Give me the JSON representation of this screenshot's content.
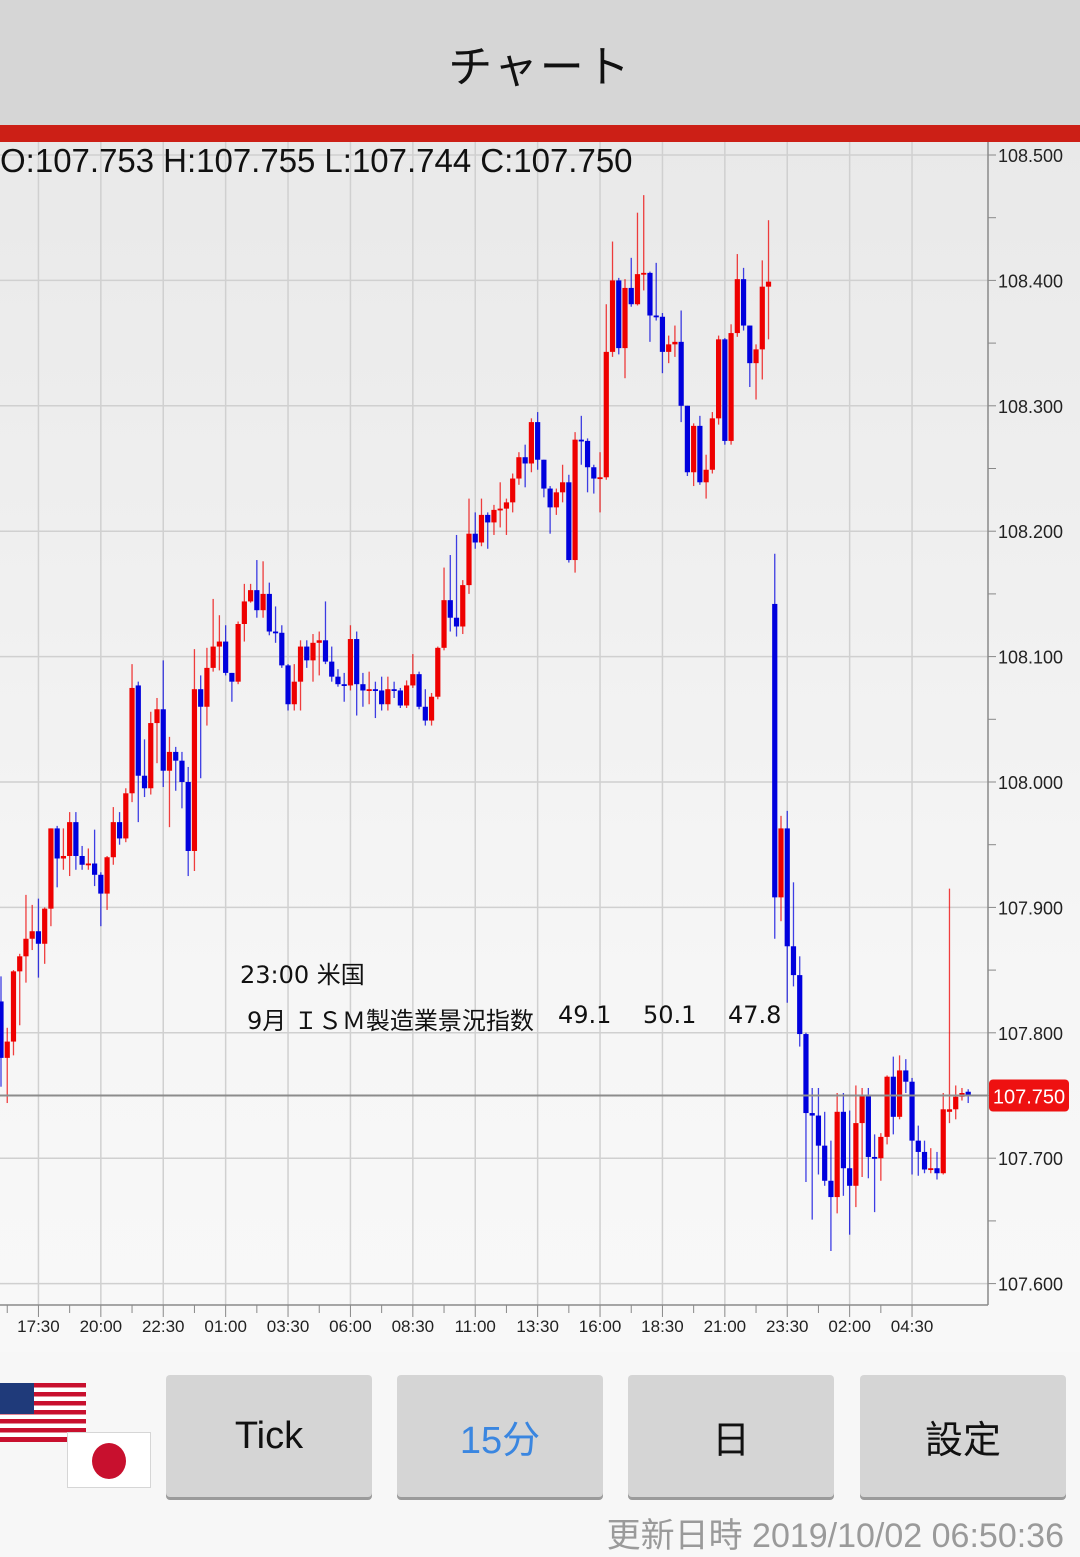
{
  "header": {
    "title": "チャート"
  },
  "ohlc": {
    "open": "O:107.753",
    "high": "H:107.755",
    "low": "L:107.744",
    "close": "C:107.750"
  },
  "event": {
    "time_country": "23:00 米国",
    "title": "9月 ＩＳＭ製造業景況指数",
    "values": [
      "49.1",
      "50.1",
      "47.8"
    ]
  },
  "colors": {
    "up": "#ee0000",
    "down": "#0000dd",
    "accent_bar": "#cc1f16",
    "price_badge": "#ee1111",
    "selected_button_text": "#3a86e0"
  },
  "toolbar": {
    "flags": [
      "us-flag-icon",
      "japan-flag-icon"
    ],
    "buttons": [
      {
        "label": "Tick",
        "selected": false
      },
      {
        "label": "15分",
        "selected": true
      },
      {
        "label": "日",
        "selected": false
      },
      {
        "label": "設定",
        "selected": false
      }
    ]
  },
  "updated": {
    "label": "更新日時",
    "value": "2019/10/02 06:50:36"
  },
  "chart_data": {
    "type": "candlestick",
    "interval": "15分",
    "ylim": [
      107.6,
      108.5
    ],
    "y_ticks": [
      "108.500",
      "108.400",
      "108.300",
      "108.200",
      "108.100",
      "108.000",
      "107.900",
      "107.800",
      "107.700",
      "107.600"
    ],
    "x_labels": [
      "17:30",
      "20:00",
      "22:30",
      "01:00",
      "03:30",
      "06:00",
      "08:30",
      "11:00",
      "13:30",
      "16:00",
      "18:30",
      "21:00",
      "23:30",
      "02:00",
      "04:30"
    ],
    "grid": true,
    "current_price": "107.750",
    "candles_ohlc": [
      [
        107.825,
        107.845,
        107.757,
        107.78
      ],
      [
        107.78,
        107.804,
        107.744,
        107.793
      ],
      [
        107.793,
        107.85,
        107.782,
        107.849
      ],
      [
        107.849,
        107.863,
        107.806,
        107.861
      ],
      [
        107.861,
        107.91,
        107.84,
        107.875
      ],
      [
        107.875,
        107.902,
        107.866,
        107.881
      ],
      [
        107.881,
        107.907,
        107.844,
        107.871
      ],
      [
        107.871,
        107.9,
        107.855,
        107.899
      ],
      [
        107.899,
        107.963,
        107.885,
        107.963
      ],
      [
        107.963,
        107.965,
        107.916,
        107.939
      ],
      [
        107.939,
        107.963,
        107.93,
        107.941
      ],
      [
        107.941,
        107.976,
        107.925,
        107.968
      ],
      [
        107.968,
        107.976,
        107.93,
        107.941
      ],
      [
        107.941,
        107.949,
        107.93,
        107.934
      ],
      [
        107.934,
        107.947,
        107.93,
        107.935
      ],
      [
        107.935,
        107.962,
        107.917,
        107.926
      ],
      [
        107.926,
        107.928,
        107.885,
        107.911
      ],
      [
        107.911,
        107.941,
        107.898,
        107.94
      ],
      [
        107.94,
        107.98,
        107.934,
        107.968
      ],
      [
        107.968,
        107.976,
        107.95,
        107.955
      ],
      [
        107.955,
        107.995,
        107.952,
        107.991
      ],
      [
        107.991,
        108.094,
        107.984,
        108.075
      ],
      [
        108.077,
        108.08,
        107.968,
        108.005
      ],
      [
        108.005,
        108.034,
        107.988,
        107.995
      ],
      [
        107.995,
        108.056,
        107.99,
        108.047
      ],
      [
        108.047,
        108.067,
        108.015,
        108.058
      ],
      [
        108.058,
        108.097,
        107.996,
        108.009
      ],
      [
        108.009,
        108.036,
        107.964,
        108.024
      ],
      [
        108.024,
        108.028,
        107.993,
        108.017
      ],
      [
        108.017,
        108.024,
        107.979,
        108.0
      ],
      [
        108.0,
        108.012,
        107.925,
        107.945
      ],
      [
        107.945,
        108.106,
        107.929,
        108.074
      ],
      [
        108.074,
        108.085,
        108.003,
        108.06
      ],
      [
        108.06,
        108.107,
        108.045,
        108.091
      ],
      [
        108.091,
        108.146,
        108.088,
        108.108
      ],
      [
        108.108,
        108.133,
        108.089,
        108.112
      ],
      [
        108.112,
        108.125,
        108.085,
        108.087
      ],
      [
        108.087,
        108.087,
        108.064,
        108.08
      ],
      [
        108.08,
        108.128,
        108.078,
        108.126
      ],
      [
        108.126,
        108.158,
        108.112,
        108.144
      ],
      [
        108.144,
        108.158,
        108.143,
        108.153
      ],
      [
        108.153,
        108.177,
        108.131,
        108.137
      ],
      [
        108.137,
        108.176,
        108.131,
        108.15
      ],
      [
        108.15,
        108.159,
        108.117,
        108.12
      ],
      [
        108.12,
        108.14,
        108.111,
        108.119
      ],
      [
        108.119,
        108.125,
        108.091,
        108.093
      ],
      [
        108.093,
        108.094,
        108.057,
        108.062
      ],
      [
        108.062,
        108.094,
        108.057,
        108.08
      ],
      [
        108.08,
        108.113,
        108.057,
        108.108
      ],
      [
        108.108,
        108.113,
        108.091,
        108.097
      ],
      [
        108.097,
        108.118,
        108.08,
        108.111
      ],
      [
        108.111,
        108.12,
        108.085,
        108.113
      ],
      [
        108.113,
        108.144,
        108.094,
        108.096
      ],
      [
        108.096,
        108.108,
        108.08,
        108.084
      ],
      [
        108.084,
        108.09,
        108.076,
        108.078
      ],
      [
        108.078,
        108.087,
        108.064,
        108.077
      ],
      [
        108.077,
        108.125,
        108.073,
        108.114
      ],
      [
        108.114,
        108.12,
        108.053,
        108.078
      ],
      [
        108.078,
        108.087,
        108.06,
        108.073
      ],
      [
        108.073,
        108.088,
        108.062,
        108.074
      ],
      [
        108.074,
        108.08,
        108.051,
        108.073
      ],
      [
        108.073,
        108.084,
        108.057,
        108.062
      ],
      [
        108.062,
        108.084,
        108.057,
        108.074
      ],
      [
        108.074,
        108.08,
        108.067,
        108.073
      ],
      [
        108.073,
        108.075,
        108.059,
        108.061
      ],
      [
        108.061,
        108.081,
        108.059,
        108.077
      ],
      [
        108.077,
        108.102,
        108.075,
        108.086
      ],
      [
        108.086,
        108.088,
        108.058,
        108.06
      ],
      [
        108.06,
        108.074,
        108.045,
        108.049
      ],
      [
        108.049,
        108.071,
        108.045,
        108.068
      ],
      [
        108.068,
        108.108,
        108.066,
        108.107
      ],
      [
        108.107,
        108.171,
        108.105,
        108.145
      ],
      [
        108.145,
        108.181,
        108.12,
        108.131
      ],
      [
        108.131,
        108.197,
        108.116,
        108.124
      ],
      [
        108.124,
        108.161,
        108.118,
        108.157
      ],
      [
        108.157,
        108.226,
        108.15,
        108.198
      ],
      [
        108.198,
        108.215,
        108.186,
        108.191
      ],
      [
        108.191,
        108.226,
        108.188,
        108.213
      ],
      [
        108.213,
        108.215,
        108.186,
        108.207
      ],
      [
        108.207,
        108.221,
        108.197,
        108.217
      ],
      [
        108.217,
        108.239,
        108.203,
        108.218
      ],
      [
        108.218,
        108.226,
        108.197,
        108.223
      ],
      [
        108.223,
        108.246,
        108.215,
        108.242
      ],
      [
        108.242,
        108.263,
        108.237,
        108.259
      ],
      [
        108.259,
        108.269,
        108.235,
        108.254
      ],
      [
        108.254,
        108.29,
        108.247,
        108.287
      ],
      [
        108.287,
        108.295,
        108.249,
        108.257
      ],
      [
        108.257,
        108.257,
        108.227,
        108.234
      ],
      [
        108.234,
        108.236,
        108.198,
        108.219
      ],
      [
        108.219,
        108.234,
        108.213,
        108.231
      ],
      [
        108.231,
        108.253,
        108.223,
        108.239
      ],
      [
        108.239,
        108.245,
        108.175,
        108.177
      ],
      [
        108.177,
        108.279,
        108.167,
        108.273
      ],
      [
        108.273,
        108.292,
        108.253,
        108.272
      ],
      [
        108.272,
        108.274,
        108.231,
        108.251
      ],
      [
        108.251,
        108.253,
        108.23,
        108.242
      ],
      [
        108.242,
        108.263,
        108.215,
        108.243
      ],
      [
        108.243,
        108.381,
        108.241,
        108.343
      ],
      [
        108.343,
        108.431,
        108.339,
        108.4
      ],
      [
        108.4,
        108.402,
        108.341,
        108.346
      ],
      [
        108.346,
        108.401,
        108.322,
        108.394
      ],
      [
        108.394,
        108.418,
        108.379,
        108.381
      ],
      [
        108.381,
        108.454,
        108.38,
        108.405
      ],
      [
        108.405,
        108.468,
        108.392,
        108.406
      ],
      [
        108.406,
        108.407,
        108.351,
        108.372
      ],
      [
        108.372,
        108.414,
        108.368,
        108.371
      ],
      [
        108.371,
        108.374,
        108.326,
        108.343
      ],
      [
        108.343,
        108.356,
        108.334,
        108.349
      ],
      [
        108.349,
        108.364,
        108.339,
        108.351
      ],
      [
        108.351,
        108.376,
        108.287,
        108.3
      ],
      [
        108.3,
        108.3,
        108.244,
        108.247
      ],
      [
        108.247,
        108.286,
        108.236,
        108.284
      ],
      [
        108.284,
        108.292,
        108.237,
        108.239
      ],
      [
        108.239,
        108.261,
        108.226,
        108.249
      ],
      [
        108.249,
        108.295,
        108.246,
        108.29
      ],
      [
        108.29,
        108.356,
        108.285,
        108.353
      ],
      [
        108.353,
        108.354,
        108.269,
        108.272
      ],
      [
        108.272,
        108.365,
        108.269,
        108.358
      ],
      [
        108.358,
        108.421,
        108.355,
        108.401
      ],
      [
        108.401,
        108.41,
        108.36,
        108.364
      ],
      [
        108.364,
        108.364,
        108.315,
        108.334
      ],
      [
        108.334,
        108.349,
        108.305,
        108.345
      ],
      [
        108.345,
        108.416,
        108.321,
        108.395
      ],
      [
        108.395,
        108.448,
        108.353,
        108.399
      ],
      [
        108.142,
        108.182,
        107.875,
        107.908
      ],
      [
        107.908,
        107.973,
        107.889,
        107.963
      ],
      [
        107.963,
        107.977,
        107.824,
        107.869
      ],
      [
        107.869,
        107.92,
        107.837,
        107.846
      ],
      [
        107.846,
        107.861,
        107.789,
        107.799
      ],
      [
        107.799,
        107.8,
        107.681,
        107.736
      ],
      [
        107.736,
        107.756,
        107.651,
        107.734
      ],
      [
        107.734,
        107.756,
        107.687,
        107.71
      ],
      [
        107.71,
        107.737,
        107.678,
        107.682
      ],
      [
        107.682,
        107.714,
        107.626,
        107.669
      ],
      [
        107.669,
        107.752,
        107.656,
        107.737
      ],
      [
        107.737,
        107.752,
        107.67,
        107.692
      ],
      [
        107.692,
        107.738,
        107.639,
        107.678
      ],
      [
        107.678,
        107.758,
        107.661,
        107.728
      ],
      [
        107.728,
        107.756,
        107.685,
        107.75
      ],
      [
        107.75,
        107.756,
        107.684,
        107.701
      ],
      [
        107.701,
        107.719,
        107.657,
        107.7
      ],
      [
        107.7,
        107.72,
        107.682,
        107.717
      ],
      [
        107.717,
        107.766,
        107.711,
        107.765
      ],
      [
        107.765,
        107.781,
        107.719,
        107.733
      ],
      [
        107.733,
        107.782,
        107.731,
        107.77
      ],
      [
        107.77,
        107.779,
        107.752,
        107.761
      ],
      [
        107.761,
        107.764,
        107.687,
        107.714
      ],
      [
        107.714,
        107.726,
        107.686,
        107.705
      ],
      [
        107.705,
        107.714,
        107.688,
        107.691
      ],
      [
        107.691,
        107.708,
        107.688,
        107.692
      ],
      [
        107.692,
        107.705,
        107.683,
        107.688
      ],
      [
        107.688,
        107.752,
        107.687,
        107.739
      ],
      [
        107.737,
        107.915,
        107.728,
        107.739
      ],
      [
        107.739,
        107.758,
        107.731,
        107.749
      ],
      [
        107.749,
        107.756,
        107.746,
        107.752
      ],
      [
        107.753,
        107.755,
        107.744,
        107.75
      ]
    ]
  }
}
